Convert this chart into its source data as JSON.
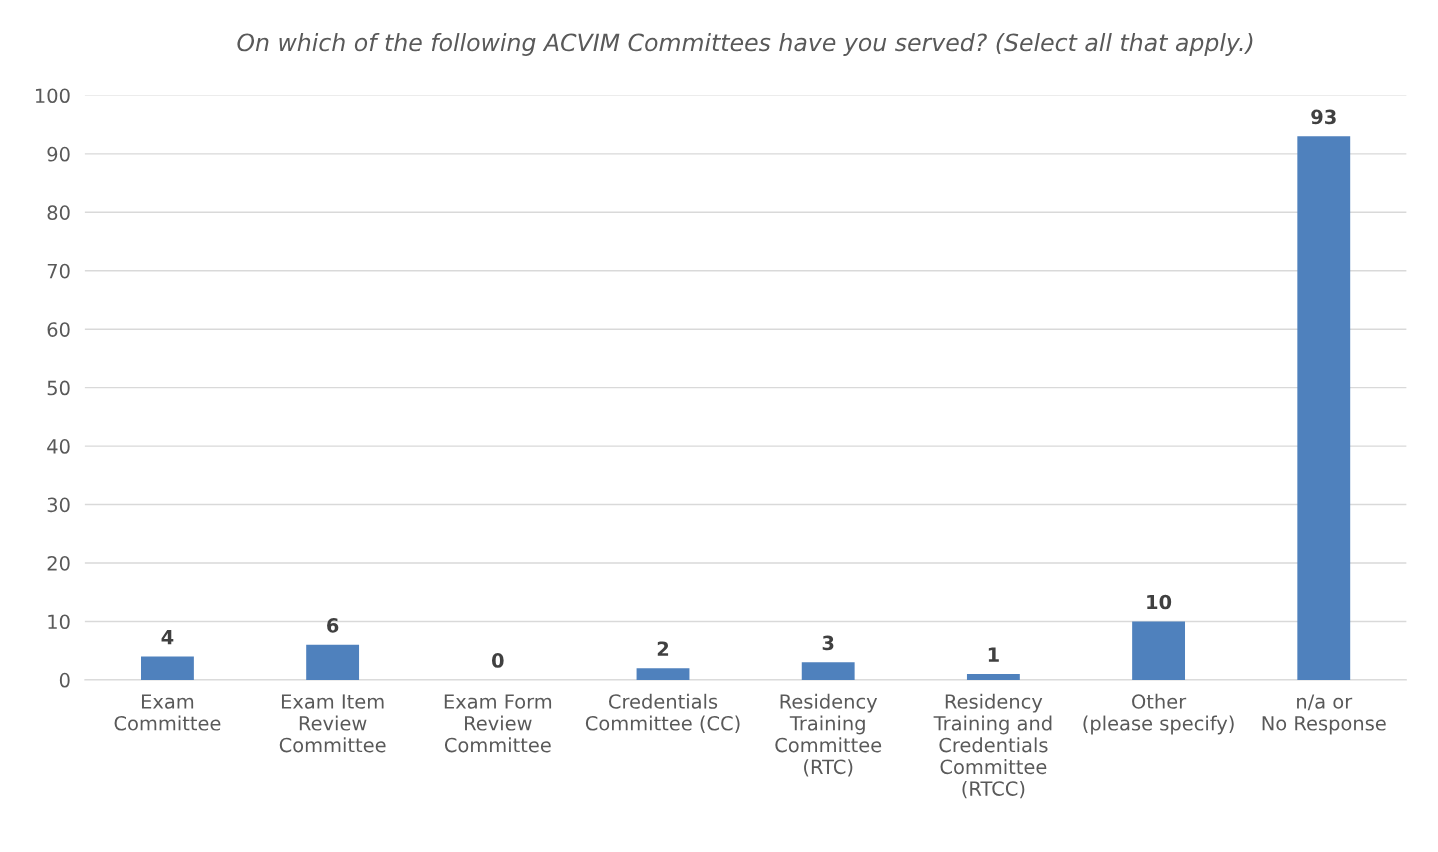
{
  "chart_data": {
    "type": "bar",
    "title": "On which of the following ACVIM Committees have you served? (Select all that apply.)",
    "categories": [
      "Exam\nCommittee",
      "Exam Item\nReview\nCommittee",
      "Exam Form\nReview\nCommittee",
      "Credentials\nCommittee (CC)",
      "Residency\nTraining\nCommittee\n(RTC)",
      "Residency\nTraining and\nCredentials\nCommittee\n(RTCC)",
      "Other\n(please specify)",
      "n/a or\nNo Response"
    ],
    "values": [
      4,
      6,
      0,
      2,
      3,
      1,
      10,
      93
    ],
    "color": "#4f81bd",
    "ylim": [
      0,
      100
    ],
    "yticks": [
      0,
      10,
      20,
      30,
      40,
      50,
      60,
      70,
      80,
      90,
      100
    ],
    "grid": "y",
    "data_labels": true
  }
}
